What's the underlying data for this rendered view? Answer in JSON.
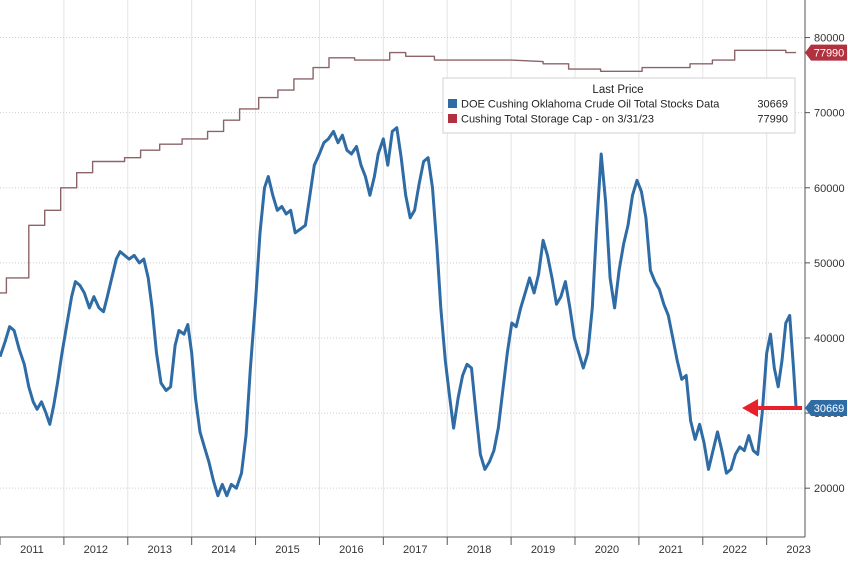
{
  "chart_data": {
    "type": "line",
    "title": "",
    "xlabel": "",
    "ylabel": "",
    "x_ticks": [
      "2011",
      "2012",
      "2013",
      "2014",
      "2015",
      "2016",
      "2017",
      "2018",
      "2019",
      "2020",
      "2021",
      "2022",
      "2023"
    ],
    "y_ticks": [
      20000,
      30000,
      40000,
      50000,
      60000,
      70000,
      80000
    ],
    "y_tick_labels": [
      "20000",
      "30000",
      "40000",
      "50000",
      "60000",
      "70000",
      "80000"
    ],
    "xlim": [
      2011.0,
      2023.6
    ],
    "ylim": [
      13500,
      85000
    ],
    "grid": true,
    "legend": {
      "placement": "top-right",
      "header": "Last Price",
      "entries": [
        {
          "label": "DOE Cushing Oklahoma Crude Oil Total Stocks Data",
          "value": "30669",
          "color": "#2f6ba5"
        },
        {
          "label": "Cushing Total Storage Cap -  on 3/31/23",
          "value": "77990",
          "color": "#b2313f"
        }
      ]
    },
    "annotation": {
      "text": "arrow",
      "color": "#e8202c"
    },
    "series": [
      {
        "name": "DOE Cushing Oklahoma Crude Oil Total Stocks Data",
        "color": "#2f6ba5",
        "last_value_label": "30669",
        "points": [
          [
            2011.0,
            37500
          ],
          [
            2011.08,
            39500
          ],
          [
            2011.15,
            41500
          ],
          [
            2011.22,
            41000
          ],
          [
            2011.3,
            38500
          ],
          [
            2011.38,
            36500
          ],
          [
            2011.45,
            33500
          ],
          [
            2011.52,
            31500
          ],
          [
            2011.58,
            30500
          ],
          [
            2011.65,
            31500
          ],
          [
            2011.72,
            30000
          ],
          [
            2011.78,
            28500
          ],
          [
            2011.84,
            31000
          ],
          [
            2011.9,
            34000
          ],
          [
            2011.97,
            38000
          ],
          [
            2012.05,
            42000
          ],
          [
            2012.12,
            45500
          ],
          [
            2012.18,
            47500
          ],
          [
            2012.25,
            47000
          ],
          [
            2012.32,
            46000
          ],
          [
            2012.4,
            44000
          ],
          [
            2012.47,
            45500
          ],
          [
            2012.55,
            44000
          ],
          [
            2012.62,
            43500
          ],
          [
            2012.68,
            45500
          ],
          [
            2012.75,
            48000
          ],
          [
            2012.82,
            50500
          ],
          [
            2012.88,
            51500
          ],
          [
            2012.95,
            51000
          ],
          [
            2013.02,
            50500
          ],
          [
            2013.1,
            51000
          ],
          [
            2013.18,
            50000
          ],
          [
            2013.25,
            50500
          ],
          [
            2013.32,
            48000
          ],
          [
            2013.38,
            44000
          ],
          [
            2013.45,
            38000
          ],
          [
            2013.52,
            34000
          ],
          [
            2013.6,
            33000
          ],
          [
            2013.67,
            33500
          ],
          [
            2013.74,
            39000
          ],
          [
            2013.8,
            41000
          ],
          [
            2013.88,
            40500
          ],
          [
            2013.94,
            41800
          ],
          [
            2014.0,
            38000
          ],
          [
            2014.06,
            32000
          ],
          [
            2014.13,
            27500
          ],
          [
            2014.2,
            25500
          ],
          [
            2014.27,
            23500
          ],
          [
            2014.34,
            21000
          ],
          [
            2014.41,
            19000
          ],
          [
            2014.48,
            20500
          ],
          [
            2014.55,
            19000
          ],
          [
            2014.62,
            20500
          ],
          [
            2014.7,
            20000
          ],
          [
            2014.78,
            22000
          ],
          [
            2014.85,
            27000
          ],
          [
            2014.92,
            36000
          ],
          [
            2015.0,
            45000
          ],
          [
            2015.07,
            54000
          ],
          [
            2015.14,
            60000
          ],
          [
            2015.2,
            61500
          ],
          [
            2015.27,
            59000
          ],
          [
            2015.34,
            57000
          ],
          [
            2015.41,
            57500
          ],
          [
            2015.48,
            56500
          ],
          [
            2015.55,
            57000
          ],
          [
            2015.62,
            54000
          ],
          [
            2015.7,
            54500
          ],
          [
            2015.78,
            55000
          ],
          [
            2015.85,
            59000
          ],
          [
            2015.92,
            63000
          ],
          [
            2016.0,
            64500
          ],
          [
            2016.07,
            66000
          ],
          [
            2016.14,
            66500
          ],
          [
            2016.22,
            67500
          ],
          [
            2016.29,
            66000
          ],
          [
            2016.36,
            67000
          ],
          [
            2016.43,
            65000
          ],
          [
            2016.5,
            64500
          ],
          [
            2016.58,
            65500
          ],
          [
            2016.65,
            63000
          ],
          [
            2016.72,
            61500
          ],
          [
            2016.79,
            59000
          ],
          [
            2016.86,
            61500
          ],
          [
            2016.92,
            64500
          ],
          [
            2017.0,
            66500
          ],
          [
            2017.07,
            63000
          ],
          [
            2017.14,
            67500
          ],
          [
            2017.21,
            68000
          ],
          [
            2017.28,
            64000
          ],
          [
            2017.35,
            59000
          ],
          [
            2017.42,
            56000
          ],
          [
            2017.49,
            57000
          ],
          [
            2017.56,
            60500
          ],
          [
            2017.63,
            63500
          ],
          [
            2017.7,
            64000
          ],
          [
            2017.77,
            60000
          ],
          [
            2017.84,
            52000
          ],
          [
            2017.9,
            44000
          ],
          [
            2017.97,
            37000
          ],
          [
            2018.04,
            32000
          ],
          [
            2018.1,
            28000
          ],
          [
            2018.17,
            32000
          ],
          [
            2018.24,
            35000
          ],
          [
            2018.31,
            36500
          ],
          [
            2018.38,
            36000
          ],
          [
            2018.45,
            30000
          ],
          [
            2018.52,
            24500
          ],
          [
            2018.59,
            22500
          ],
          [
            2018.66,
            23500
          ],
          [
            2018.73,
            25000
          ],
          [
            2018.8,
            28000
          ],
          [
            2018.87,
            33000
          ],
          [
            2018.94,
            38000
          ],
          [
            2019.01,
            42000
          ],
          [
            2019.08,
            41500
          ],
          [
            2019.15,
            44000
          ],
          [
            2019.22,
            46000
          ],
          [
            2019.29,
            48000
          ],
          [
            2019.36,
            46000
          ],
          [
            2019.43,
            48500
          ],
          [
            2019.5,
            53000
          ],
          [
            2019.57,
            51000
          ],
          [
            2019.64,
            48000
          ],
          [
            2019.71,
            44500
          ],
          [
            2019.78,
            45500
          ],
          [
            2019.85,
            47500
          ],
          [
            2019.92,
            44000
          ],
          [
            2019.99,
            40000
          ],
          [
            2020.06,
            38000
          ],
          [
            2020.13,
            36000
          ],
          [
            2020.2,
            38000
          ],
          [
            2020.27,
            44000
          ],
          [
            2020.34,
            55000
          ],
          [
            2020.41,
            64500
          ],
          [
            2020.48,
            58000
          ],
          [
            2020.55,
            48000
          ],
          [
            2020.62,
            44000
          ],
          [
            2020.69,
            49000
          ],
          [
            2020.76,
            52500
          ],
          [
            2020.83,
            55000
          ],
          [
            2020.9,
            59000
          ],
          [
            2020.97,
            61000
          ],
          [
            2021.04,
            59500
          ],
          [
            2021.11,
            56000
          ],
          [
            2021.18,
            49000
          ],
          [
            2021.25,
            47500
          ],
          [
            2021.32,
            46500
          ],
          [
            2021.39,
            44500
          ],
          [
            2021.46,
            43000
          ],
          [
            2021.53,
            40000
          ],
          [
            2021.6,
            37000
          ],
          [
            2021.67,
            34500
          ],
          [
            2021.74,
            35000
          ],
          [
            2021.81,
            29000
          ],
          [
            2021.88,
            26500
          ],
          [
            2021.95,
            28500
          ],
          [
            2022.02,
            26000
          ],
          [
            2022.09,
            22500
          ],
          [
            2022.16,
            25000
          ],
          [
            2022.23,
            27500
          ],
          [
            2022.3,
            25000
          ],
          [
            2022.37,
            22000
          ],
          [
            2022.44,
            22500
          ],
          [
            2022.51,
            24500
          ],
          [
            2022.58,
            25500
          ],
          [
            2022.65,
            25000
          ],
          [
            2022.72,
            27000
          ],
          [
            2022.79,
            25000
          ],
          [
            2022.86,
            24500
          ],
          [
            2022.93,
            30000
          ],
          [
            2023.0,
            38000
          ],
          [
            2023.06,
            40500
          ],
          [
            2023.12,
            36000
          ],
          [
            2023.18,
            33500
          ],
          [
            2023.24,
            37000
          ],
          [
            2023.3,
            42000
          ],
          [
            2023.36,
            43000
          ],
          [
            2023.42,
            36000
          ],
          [
            2023.46,
            30669
          ]
        ]
      },
      {
        "name": "Cushing Total Storage Cap -  on 3/31/23",
        "color": "#b2313f",
        "line_color": "#8c6468",
        "last_value_label": "77990",
        "points": [
          [
            2011.0,
            46000
          ],
          [
            2011.1,
            46000
          ],
          [
            2011.1,
            48000
          ],
          [
            2011.45,
            48000
          ],
          [
            2011.45,
            55000
          ],
          [
            2011.7,
            55000
          ],
          [
            2011.7,
            57000
          ],
          [
            2011.95,
            57000
          ],
          [
            2011.95,
            60000
          ],
          [
            2012.2,
            60000
          ],
          [
            2012.2,
            62000
          ],
          [
            2012.45,
            62000
          ],
          [
            2012.45,
            63500
          ],
          [
            2012.95,
            63500
          ],
          [
            2012.95,
            64000
          ],
          [
            2013.2,
            64000
          ],
          [
            2013.2,
            65000
          ],
          [
            2013.5,
            65000
          ],
          [
            2013.5,
            65800
          ],
          [
            2013.85,
            65800
          ],
          [
            2013.85,
            66500
          ],
          [
            2014.25,
            66500
          ],
          [
            2014.25,
            67500
          ],
          [
            2014.5,
            67500
          ],
          [
            2014.5,
            69000
          ],
          [
            2014.75,
            69000
          ],
          [
            2014.75,
            70500
          ],
          [
            2015.05,
            70500
          ],
          [
            2015.05,
            72000
          ],
          [
            2015.35,
            72000
          ],
          [
            2015.35,
            73000
          ],
          [
            2015.6,
            73000
          ],
          [
            2015.6,
            74500
          ],
          [
            2015.9,
            74500
          ],
          [
            2015.9,
            76000
          ],
          [
            2016.15,
            76000
          ],
          [
            2016.15,
            77300
          ],
          [
            2016.55,
            77300
          ],
          [
            2016.55,
            77000
          ],
          [
            2017.1,
            77000
          ],
          [
            2017.1,
            78000
          ],
          [
            2017.35,
            78000
          ],
          [
            2017.35,
            77500
          ],
          [
            2017.8,
            77500
          ],
          [
            2017.8,
            77000
          ],
          [
            2019.0,
            77000
          ],
          [
            2019.5,
            76800
          ],
          [
            2019.5,
            76500
          ],
          [
            2019.9,
            76500
          ],
          [
            2019.9,
            75800
          ],
          [
            2020.4,
            75800
          ],
          [
            2020.4,
            75500
          ],
          [
            2021.05,
            75500
          ],
          [
            2021.05,
            76000
          ],
          [
            2021.8,
            76000
          ],
          [
            2021.8,
            76500
          ],
          [
            2022.15,
            76500
          ],
          [
            2022.15,
            77000
          ],
          [
            2022.5,
            77000
          ],
          [
            2022.5,
            78300
          ],
          [
            2023.3,
            78300
          ],
          [
            2023.3,
            77990
          ],
          [
            2023.46,
            77990
          ]
        ]
      }
    ]
  }
}
